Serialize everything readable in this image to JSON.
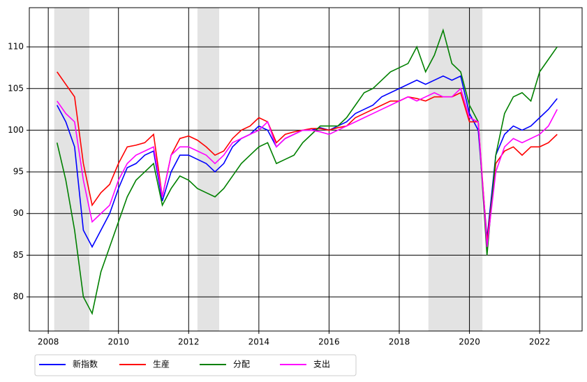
{
  "chart_data": {
    "type": "line",
    "x": [
      2008.25,
      2008.5,
      2008.75,
      2009,
      2009.25,
      2009.5,
      2009.75,
      2010,
      2010.25,
      2010.5,
      2010.75,
      2011,
      2011.25,
      2011.5,
      2011.75,
      2012,
      2012.25,
      2012.5,
      2012.75,
      2013,
      2013.25,
      2013.5,
      2013.75,
      2014,
      2014.25,
      2014.5,
      2014.75,
      2015,
      2015.25,
      2015.5,
      2015.75,
      2016,
      2016.25,
      2016.5,
      2016.75,
      2017,
      2017.25,
      2017.5,
      2017.75,
      2018,
      2018.25,
      2018.5,
      2018.75,
      2019,
      2019.25,
      2019.5,
      2019.75,
      2020,
      2020.25,
      2020.5,
      2020.75,
      2021,
      2021.25,
      2021.5,
      2021.75,
      2022,
      2022.25,
      2022.5
    ],
    "series": [
      {
        "name": "新指数",
        "color": "#0000ff",
        "values": [
          103,
          101,
          98,
          88,
          86,
          88,
          90,
          93,
          95.5,
          96,
          97,
          97.5,
          91.5,
          95,
          97,
          97,
          96.5,
          96,
          95,
          96,
          98,
          99,
          99.5,
          100.5,
          100,
          98,
          99,
          99.5,
          100,
          100,
          100.3,
          100,
          100.5,
          101,
          102,
          102.5,
          103,
          104,
          104.5,
          105,
          105.5,
          106,
          105.5,
          106,
          106.5,
          106,
          106.5,
          102,
          100,
          87,
          97,
          99.5,
          100.5,
          100,
          100.5,
          101.5,
          102.5,
          103.8
        ]
      },
      {
        "name": "生産",
        "color": "#ff0000",
        "values": [
          107,
          105.5,
          104,
          96,
          91,
          92.5,
          93.5,
          96,
          98,
          98.2,
          98.5,
          99.5,
          92,
          97,
          99,
          99.3,
          98.8,
          98,
          97,
          97.5,
          99,
          100,
          100.5,
          101.5,
          101,
          98.5,
          99.5,
          99.8,
          100,
          100.2,
          100.2,
          100,
          100.3,
          100.5,
          101.5,
          102,
          102.5,
          103,
          103.5,
          103.5,
          104,
          103.8,
          103.5,
          104,
          104,
          104,
          104.5,
          101,
          101,
          86.5,
          96,
          97.5,
          98,
          97,
          98,
          98,
          98.5,
          99.5
        ]
      },
      {
        "name": "分配",
        "color": "#008000",
        "values": [
          98.5,
          94,
          88,
          80,
          78,
          83,
          86,
          89,
          92,
          94,
          95,
          96,
          91,
          93,
          94.5,
          94,
          93,
          92.5,
          92,
          93,
          94.5,
          96,
          97,
          98,
          98.5,
          96,
          96.5,
          97,
          98.5,
          99.5,
          100.5,
          100.5,
          100.5,
          101.5,
          103,
          104.5,
          105,
          106,
          107,
          107.5,
          108,
          110,
          107,
          109,
          112,
          108,
          107,
          103,
          101,
          85,
          97,
          102,
          104,
          104.5,
          103.5,
          107,
          108.5,
          110
        ]
      },
      {
        "name": "支出",
        "color": "#ff00ff",
        "values": [
          103.5,
          102,
          101,
          94,
          89,
          90,
          91,
          94,
          96,
          97,
          97.5,
          98,
          92,
          97,
          98,
          98,
          97.5,
          97,
          96,
          97,
          98.5,
          99,
          99.5,
          100,
          101,
          98,
          99,
          99.5,
          100,
          100,
          99.8,
          99.5,
          100,
          100.5,
          101,
          101.5,
          102,
          102.5,
          103,
          103.5,
          104,
          103.5,
          104,
          104.5,
          104,
          104,
          105,
          101.5,
          101,
          86,
          95,
          98,
          99,
          98.5,
          99,
          99.5,
          100.5,
          102.5
        ]
      }
    ],
    "shaded_spans": [
      [
        2008.17,
        2009.17
      ],
      [
        2012.25,
        2012.87
      ],
      [
        2018.83,
        2020.37
      ]
    ],
    "xlim": [
      2007.46,
      2023.21
    ],
    "xticks": [
      2008,
      2010,
      2012,
      2014,
      2016,
      2018,
      2020,
      2022
    ],
    "ylim": [
      75.9,
      114.7
    ],
    "yticks": [
      80,
      85,
      90,
      95,
      100,
      105,
      110
    ],
    "grid": true
  }
}
